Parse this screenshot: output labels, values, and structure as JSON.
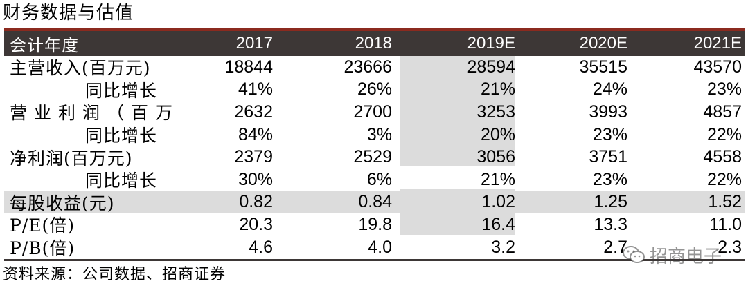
{
  "title": "财务数据与估值",
  "table": {
    "header": [
      "会计年度",
      "2017",
      "2018",
      "2019E",
      "2020E",
      "2021E"
    ],
    "rows": [
      {
        "label": "主营收入(百万元)",
        "values": [
          "18844",
          "23666",
          "28594",
          "35515",
          "43570"
        ]
      },
      {
        "label": "同比增长",
        "values": [
          "41%",
          "26%",
          "21%",
          "24%",
          "23%"
        ]
      },
      {
        "label": "营业利润（百万",
        "values": [
          "2632",
          "2700",
          "3253",
          "3993",
          "4857"
        ]
      },
      {
        "label": "同比增长",
        "values": [
          "84%",
          "3%",
          "20%",
          "23%",
          "22%"
        ]
      },
      {
        "label": "净利润(百万元)",
        "values": [
          "2379",
          "2529",
          "3056",
          "3751",
          "4558"
        ]
      },
      {
        "label": "同比增长",
        "values": [
          "30%",
          "6%",
          "21%",
          "23%",
          "22%"
        ]
      },
      {
        "label": "每股收益(元)",
        "values": [
          "0.82",
          "0.84",
          "1.02",
          "1.25",
          "1.52"
        ]
      },
      {
        "label": "P/E(倍)",
        "values": [
          "20.3",
          "19.8",
          "16.4",
          "13.3",
          "11.0"
        ]
      },
      {
        "label": "P/B(倍)",
        "values": [
          "4.6",
          "4.0",
          "3.2",
          "2.7",
          "2.3"
        ]
      }
    ]
  },
  "source": "资料来源：公司数据、招商证券",
  "watermark": {
    "text": "招商电子",
    "icon": "wechat-icon"
  },
  "colors": {
    "header_bg": "#3d3736",
    "header_accent": "#8b2a1f",
    "shade": "#dcdcdc"
  }
}
